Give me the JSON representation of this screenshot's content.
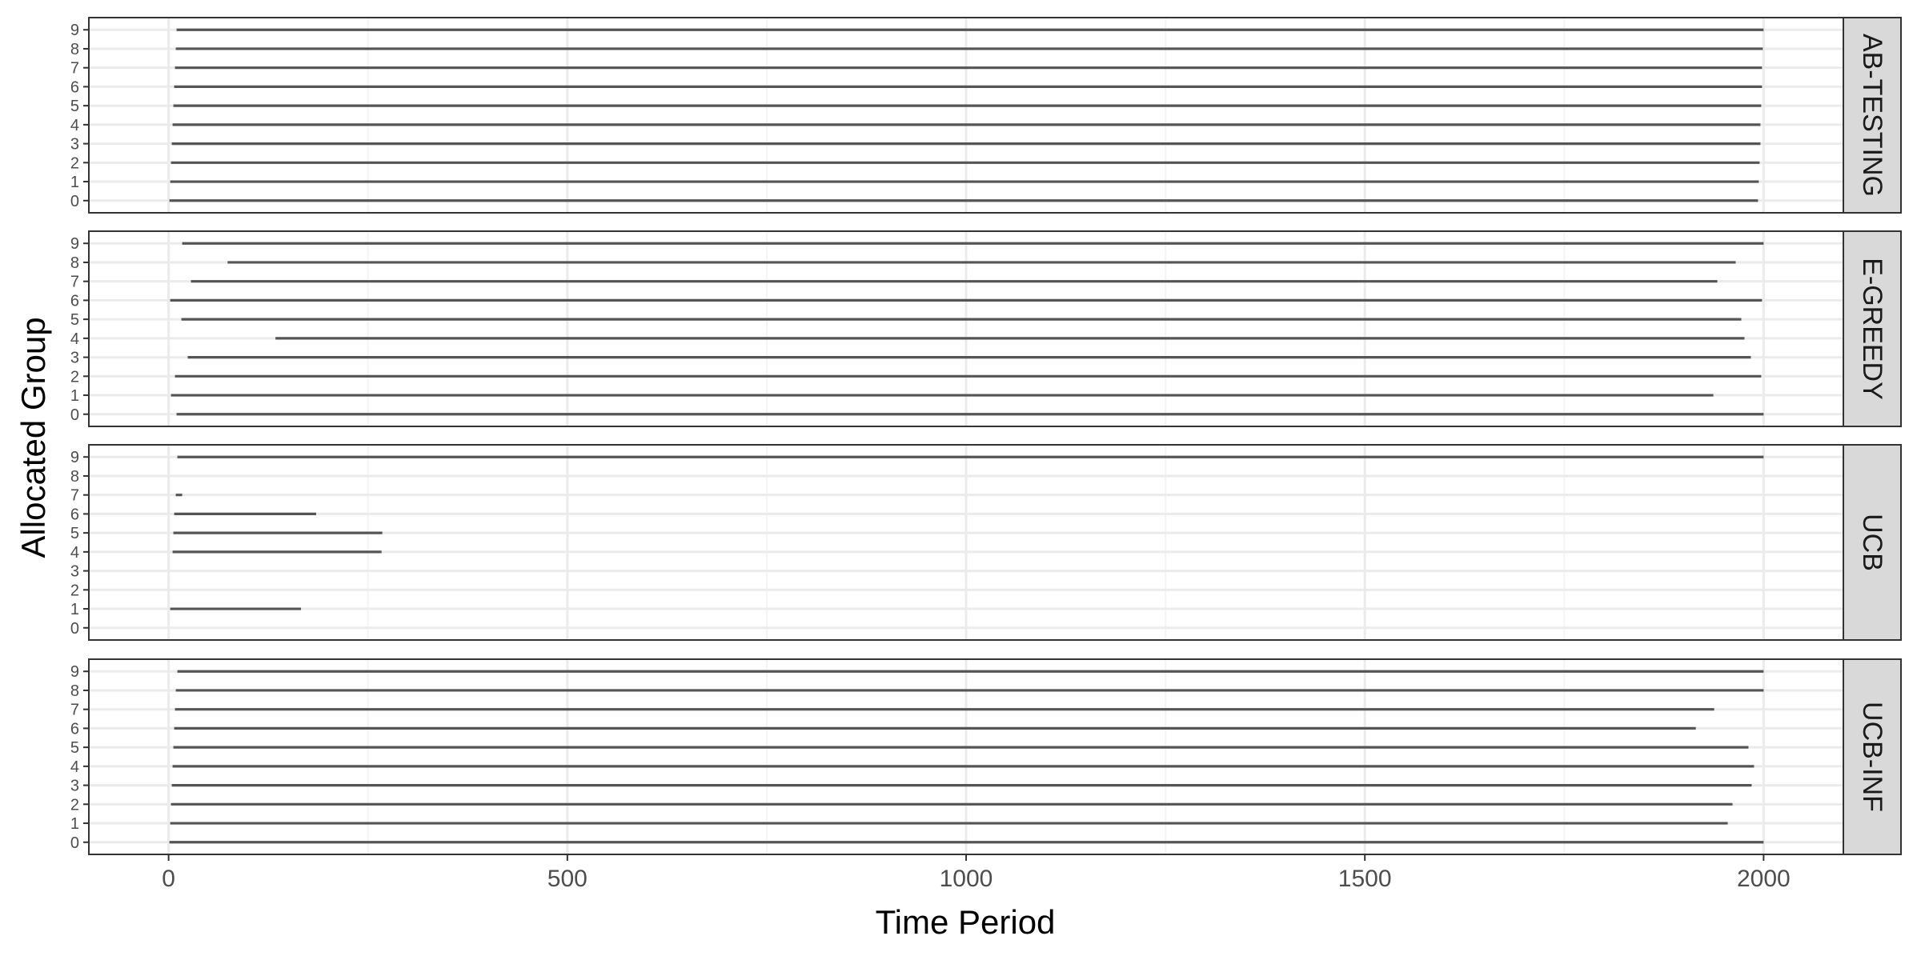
{
  "chart_data": {
    "type": "faceted-segment",
    "xlabel": "Time Period",
    "ylabel": "Allocated Group",
    "xlim": [
      -100,
      2100
    ],
    "x_ticks": [
      0,
      500,
      1000,
      1500,
      2000
    ],
    "x_tick_labels": [
      "0",
      "500",
      "1000",
      "1500",
      "2000"
    ],
    "groups": [
      "0",
      "1",
      "2",
      "3",
      "4",
      "5",
      "6",
      "7",
      "8",
      "9"
    ],
    "grid": true,
    "colors": {
      "segment": "#555555",
      "grid_major": "#ebebeb",
      "grid_minor": "#f4f4f4",
      "panel_border": "#333333",
      "strip_fill": "#d9d9d9",
      "tick_text": "#4d4d4d"
    },
    "panels": [
      {
        "strip": "AB-TESTING",
        "segments": [
          {
            "group": "0",
            "start": 1,
            "end": 1993
          },
          {
            "group": "1",
            "start": 2,
            "end": 1994
          },
          {
            "group": "2",
            "start": 3,
            "end": 1995
          },
          {
            "group": "3",
            "start": 4,
            "end": 1996
          },
          {
            "group": "4",
            "start": 5,
            "end": 1996
          },
          {
            "group": "5",
            "start": 6,
            "end": 1997
          },
          {
            "group": "6",
            "start": 7,
            "end": 1998
          },
          {
            "group": "7",
            "start": 8,
            "end": 1998
          },
          {
            "group": "8",
            "start": 9,
            "end": 1999
          },
          {
            "group": "9",
            "start": 10,
            "end": 2000
          }
        ]
      },
      {
        "strip": "E-GREEDY",
        "segments": [
          {
            "group": "0",
            "start": 10,
            "end": 2000
          },
          {
            "group": "1",
            "start": 3,
            "end": 1937
          },
          {
            "group": "2",
            "start": 8,
            "end": 1997
          },
          {
            "group": "3",
            "start": 24,
            "end": 1984
          },
          {
            "group": "4",
            "start": 134,
            "end": 1976
          },
          {
            "group": "5",
            "start": 16,
            "end": 1972
          },
          {
            "group": "6",
            "start": 2,
            "end": 1998
          },
          {
            "group": "7",
            "start": 28,
            "end": 1942
          },
          {
            "group": "8",
            "start": 74,
            "end": 1965
          },
          {
            "group": "9",
            "start": 17,
            "end": 2000
          }
        ]
      },
      {
        "strip": "UCB",
        "segments": [
          {
            "group": "1",
            "start": 2,
            "end": 166
          },
          {
            "group": "4",
            "start": 5,
            "end": 267
          },
          {
            "group": "5",
            "start": 6,
            "end": 268
          },
          {
            "group": "6",
            "start": 7,
            "end": 185
          },
          {
            "group": "7",
            "start": 9,
            "end": 17
          },
          {
            "group": "9",
            "start": 11,
            "end": 2000
          }
        ]
      },
      {
        "strip": "UCB-INF",
        "segments": [
          {
            "group": "0",
            "start": 1,
            "end": 2000
          },
          {
            "group": "1",
            "start": 2,
            "end": 1955
          },
          {
            "group": "2",
            "start": 3,
            "end": 1961
          },
          {
            "group": "3",
            "start": 4,
            "end": 1985
          },
          {
            "group": "4",
            "start": 5,
            "end": 1988
          },
          {
            "group": "5",
            "start": 6,
            "end": 1981
          },
          {
            "group": "6",
            "start": 7,
            "end": 1915
          },
          {
            "group": "7",
            "start": 8,
            "end": 1938
          },
          {
            "group": "8",
            "start": 9,
            "end": 2000
          },
          {
            "group": "9",
            "start": 11,
            "end": 2000
          }
        ]
      }
    ]
  }
}
